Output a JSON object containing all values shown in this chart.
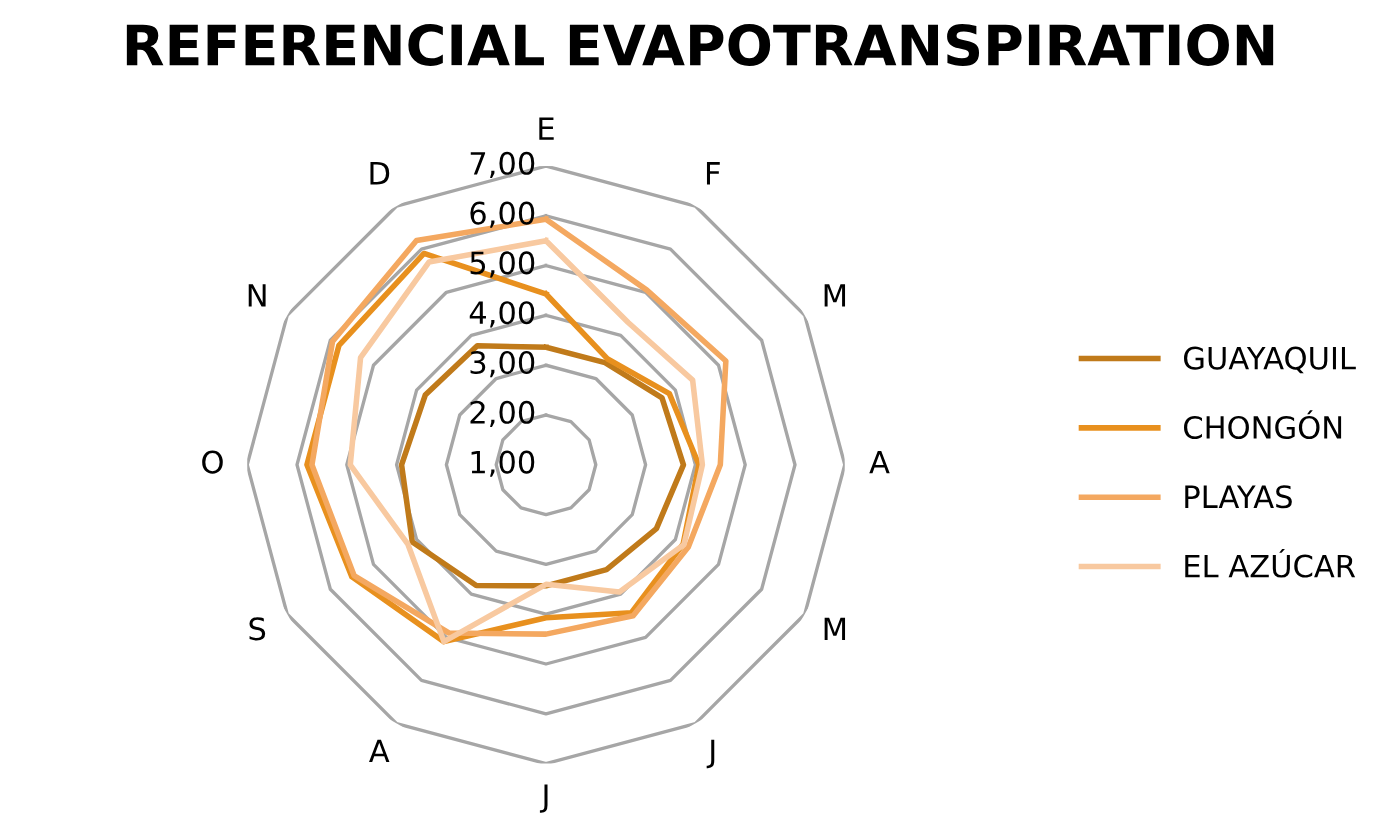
{
  "chart_data": {
    "type": "radar",
    "title": "REFERENCIAL EVAPOTRANSPIRATION",
    "categories": [
      "E",
      "F",
      "M",
      "A",
      "M",
      "J",
      "J",
      "A",
      "S",
      "O",
      "N",
      "D"
    ],
    "ylim": [
      1,
      7
    ],
    "yticks": [
      {
        "value": 1,
        "label": "1,00"
      },
      {
        "value": 2,
        "label": "2,00"
      },
      {
        "value": 3,
        "label": "3,00"
      },
      {
        "value": 4,
        "label": "4,00"
      },
      {
        "value": 5,
        "label": "5,00"
      },
      {
        "value": 6,
        "label": "6,00"
      },
      {
        "value": 7,
        "label": "7,00"
      }
    ],
    "grid": true,
    "legend": "right",
    "series": [
      {
        "name": "GUAYAQUIL",
        "color": "#c07a1a",
        "values": [
          3.36,
          3.37,
          3.69,
          3.76,
          3.56,
          3.43,
          3.43,
          3.8,
          4.1,
          3.9,
          3.8,
          3.76
        ]
      },
      {
        "name": "CHONGÓN",
        "color": "#e8901e",
        "values": [
          4.43,
          3.46,
          3.86,
          4.07,
          4.18,
          4.43,
          4.07,
          5.1,
          5.5,
          5.8,
          5.8,
          5.9
        ]
      },
      {
        "name": "PLAYAS",
        "color": "#f4a860",
        "values": [
          5.93,
          5.05,
          5.17,
          4.5,
          4.3,
          4.5,
          4.4,
          4.9,
          5.45,
          5.7,
          5.95,
          6.2
        ]
      },
      {
        "name": "EL AZÚCAR",
        "color": "#f8c9a0",
        "values": [
          5.5,
          4.3,
          4.4,
          4.14,
          4.2,
          3.95,
          3.4,
          5.1,
          4.2,
          4.93,
          5.3,
          5.7
        ]
      }
    ]
  }
}
